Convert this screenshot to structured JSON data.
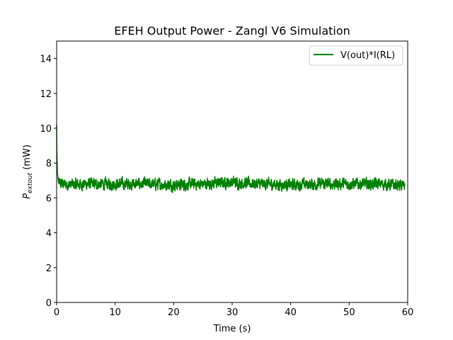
{
  "chart_data": {
    "type": "line",
    "title": "EFEH Output Power - Zangl V6 Simulation",
    "xlabel": "Time (s)",
    "ylabel": {
      "symbol": "P",
      "subscript": "extout",
      "unit": " (mW)"
    },
    "xlim": [
      0,
      60
    ],
    "ylim": [
      0,
      15
    ],
    "xticks": [
      0,
      10,
      20,
      30,
      40,
      50,
      60
    ],
    "yticks": [
      0,
      2,
      4,
      6,
      8,
      10,
      12,
      14
    ],
    "grid": false,
    "legend_position": "top-right",
    "series": [
      {
        "name": "V(out)*I(RL)",
        "color": "#008000",
        "noise_band": [
          6.2,
          7.5
        ],
        "x": [
          0,
          0.05,
          0.15,
          0.3,
          0.6,
          1,
          2,
          5,
          10,
          15,
          20,
          25,
          30,
          35,
          40,
          45,
          50,
          55,
          59.5
        ],
        "y": [
          10.2,
          8.6,
          7.4,
          6.9,
          6.8,
          6.8,
          6.75,
          6.8,
          6.8,
          6.8,
          6.75,
          6.8,
          6.9,
          6.8,
          6.75,
          6.8,
          6.8,
          6.8,
          6.7
        ]
      }
    ]
  }
}
